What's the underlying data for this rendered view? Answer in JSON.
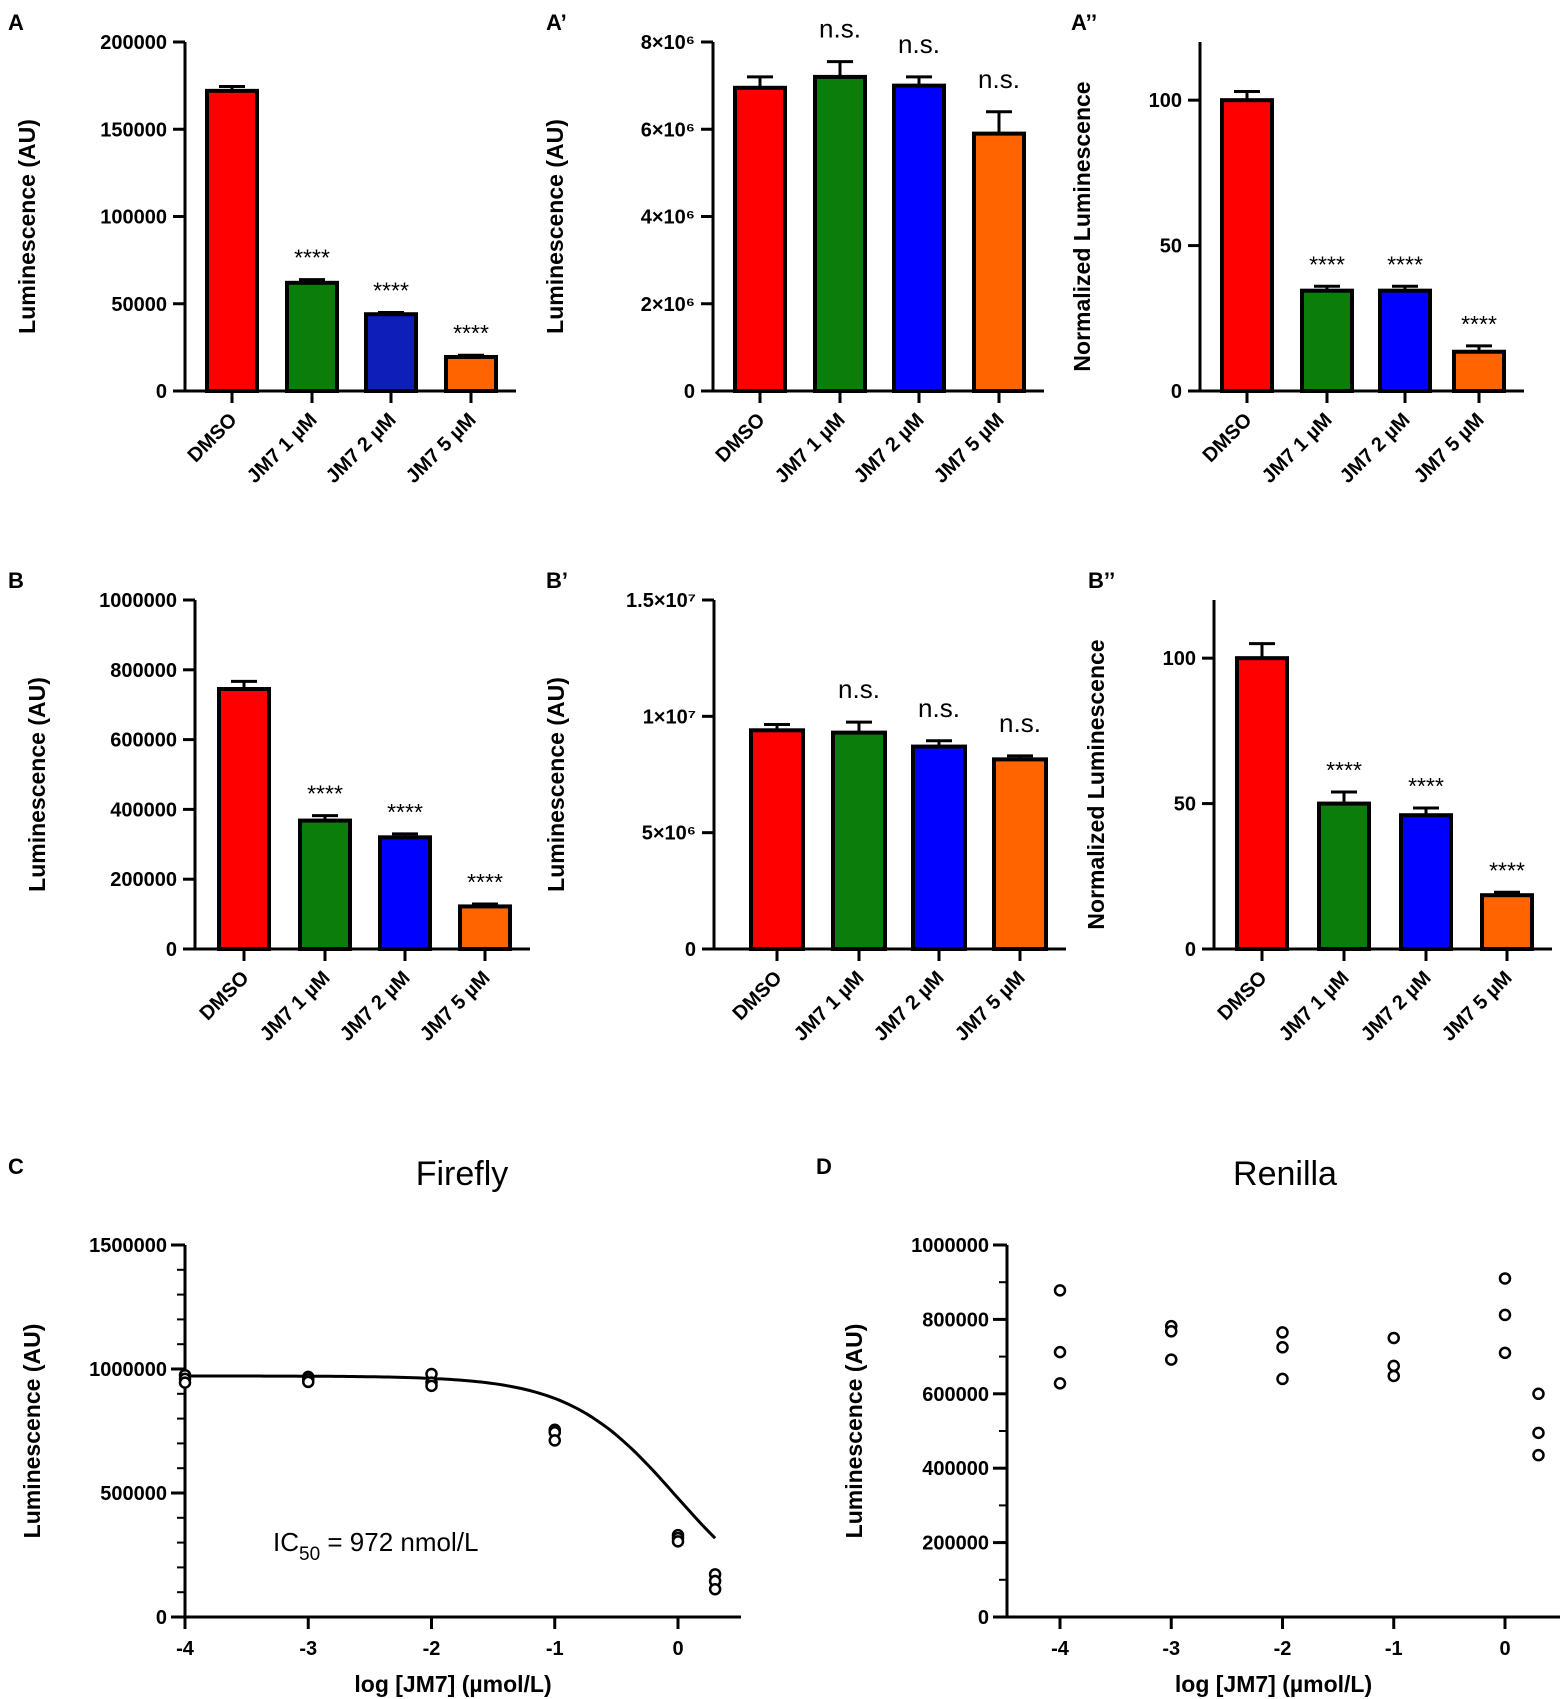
{
  "colors": {
    "DMSO": "#ff0000",
    "JM7 1 µM": "#0a7d0a",
    "JM7 2 µM": "#0000ff",
    "JM7 5 µM": "#ff6400",
    "JM7 2 µM (panel A)": "#0d1fb8"
  },
  "chart_data": [
    {
      "id": "A",
      "panel_label": "A",
      "type": "bar",
      "categories": [
        "DMSO",
        "JM7 1 µM",
        "JM7 2 µM",
        "JM7 5 µM"
      ],
      "values": [
        172000,
        62000,
        44000,
        19500
      ],
      "errors": [
        2500,
        1800,
        1000,
        1000
      ],
      "significance": [
        "",
        "****",
        "****",
        "****"
      ],
      "ylabel": "Luminescence (AU)",
      "ylim": [
        0,
        200000
      ],
      "yticks": [
        0,
        50000,
        100000,
        150000,
        200000
      ],
      "ytick_labels": [
        "0",
        "50000",
        "100000",
        "150000",
        "200000"
      ]
    },
    {
      "id": "A2",
      "panel_label": "A’",
      "type": "bar",
      "categories": [
        "DMSO",
        "JM7 1 µM",
        "JM7 2 µM",
        "JM7 5 µM"
      ],
      "values": [
        6950000,
        7200000,
        7000000,
        5900000
      ],
      "errors": [
        250000,
        350000,
        200000,
        500000
      ],
      "significance": [
        "",
        "n.s.",
        "n.s.",
        "n.s."
      ],
      "ylabel": "Luminescence (AU)",
      "ylim": [
        0,
        8000000
      ],
      "yticks": [
        0,
        2000000,
        4000000,
        6000000,
        8000000
      ],
      "ytick_labels": [
        "0",
        "2×10⁶",
        "4×10⁶",
        "6×10⁶",
        "8×10⁶"
      ]
    },
    {
      "id": "A3",
      "panel_label": "A’’",
      "type": "bar",
      "categories": [
        "DMSO",
        "JM7 1 µM",
        "JM7 2 µM",
        "JM7 5 µM"
      ],
      "values": [
        100,
        34.5,
        34.5,
        13.5
      ],
      "errors": [
        3,
        1.5,
        1.5,
        2
      ],
      "significance": [
        "",
        "****",
        "****",
        "****"
      ],
      "ylabel": "Normalized Luminescence",
      "ylim": [
        0,
        120
      ],
      "yticks": [
        0,
        50,
        100
      ],
      "ytick_labels": [
        "0",
        "50",
        "100"
      ]
    },
    {
      "id": "B",
      "panel_label": "B",
      "type": "bar",
      "categories": [
        "DMSO",
        "JM7 1 µM",
        "JM7 2 µM",
        "JM7 5 µM"
      ],
      "values": [
        745000,
        368000,
        320000,
        122000
      ],
      "errors": [
        22000,
        14000,
        10000,
        7000
      ],
      "significance": [
        "",
        "****",
        "****",
        "****"
      ],
      "ylabel": "Luminescence (AU)",
      "ylim": [
        0,
        1000000
      ],
      "yticks": [
        0,
        200000,
        400000,
        600000,
        800000,
        1000000
      ],
      "ytick_labels": [
        "0",
        "200000",
        "400000",
        "600000",
        "800000",
        "1000000"
      ]
    },
    {
      "id": "B2",
      "panel_label": "B’",
      "type": "bar",
      "categories": [
        "DMSO",
        "JM7 1 µM",
        "JM7 2 µM",
        "JM7 5 µM"
      ],
      "values": [
        9400000,
        9300000,
        8700000,
        8150000
      ],
      "errors": [
        250000,
        450000,
        250000,
        150000
      ],
      "significance": [
        "",
        "n.s.",
        "n.s.",
        "n.s."
      ],
      "ylabel": "Luminescence (AU)",
      "ylim": [
        0,
        15000000
      ],
      "yticks": [
        0,
        5000000,
        10000000,
        15000000
      ],
      "ytick_labels": [
        "0",
        "5×10⁶",
        "1×10⁷",
        "1.5×10⁷"
      ]
    },
    {
      "id": "B3",
      "panel_label": "B’’",
      "type": "bar",
      "categories": [
        "DMSO",
        "JM7 1 µM",
        "JM7 2 µM",
        "JM7 5 µM"
      ],
      "values": [
        100,
        50,
        46,
        18.5
      ],
      "errors": [
        5,
        4,
        2.5,
        1
      ],
      "significance": [
        "",
        "****",
        "****",
        "****"
      ],
      "ylabel": "Normalized Luminescence",
      "ylim": [
        0,
        120
      ],
      "yticks": [
        0,
        50,
        100
      ],
      "ytick_labels": [
        "0",
        "50",
        "100"
      ]
    },
    {
      "id": "C",
      "panel_label": "C",
      "type": "scatter",
      "title": "Firefly",
      "xlabel": "log [JM7] (µmol/L)",
      "ylabel": "Luminescence (AU)",
      "xlim": [
        -4,
        0.5
      ],
      "xticks": [
        -4,
        -3,
        -2,
        -1,
        0
      ],
      "ylim": [
        0,
        1500000
      ],
      "yticks": [
        0,
        500000,
        1000000,
        1500000
      ],
      "ytick_labels": [
        "0",
        "500000",
        "1000000",
        "1500000"
      ],
      "points": [
        {
          "x": -4,
          "y": 975000
        },
        {
          "x": -4,
          "y": 960000
        },
        {
          "x": -4,
          "y": 945000
        },
        {
          "x": -3,
          "y": 968000
        },
        {
          "x": -3,
          "y": 958000
        },
        {
          "x": -3,
          "y": 948000
        },
        {
          "x": -2,
          "y": 980000
        },
        {
          "x": -2,
          "y": 945000
        },
        {
          "x": -2,
          "y": 932000
        },
        {
          "x": -1,
          "y": 755000
        },
        {
          "x": -1,
          "y": 745000
        },
        {
          "x": -1,
          "y": 712000
        },
        {
          "x": 0,
          "y": 330000
        },
        {
          "x": 0,
          "y": 318000
        },
        {
          "x": 0,
          "y": 305000
        },
        {
          "x": 0.301,
          "y": 172000
        },
        {
          "x": 0.301,
          "y": 145000
        },
        {
          "x": 0.301,
          "y": 112000
        }
      ],
      "fit": {
        "model": "sigmoid",
        "top": 972000,
        "bottom": 0,
        "log_ic50": -0.0123,
        "hill_slope": 1
      },
      "annotation": {
        "prefix": "IC",
        "subscript": "50",
        "suffix": " = 972 nmol/L"
      }
    },
    {
      "id": "D",
      "panel_label": "D",
      "type": "scatter",
      "title": "Renilla",
      "xlabel": "log [JM7] (µmol/L)",
      "ylabel": "Luminescence (AU)",
      "xlim": [
        -4.5,
        0.45
      ],
      "xticks": [
        -4,
        -3,
        -2,
        -1,
        0
      ],
      "ylim": [
        0,
        1000000
      ],
      "yticks": [
        0,
        200000,
        400000,
        600000,
        800000,
        1000000
      ],
      "ytick_labels": [
        "0",
        "200000",
        "400000",
        "600000",
        "800000",
        "1000000"
      ],
      "points": [
        {
          "x": -4,
          "y": 878000
        },
        {
          "x": -4,
          "y": 712000
        },
        {
          "x": -4,
          "y": 628000
        },
        {
          "x": -3,
          "y": 782000
        },
        {
          "x": -3,
          "y": 768000
        },
        {
          "x": -3,
          "y": 692000
        },
        {
          "x": -2,
          "y": 765000
        },
        {
          "x": -2,
          "y": 725000
        },
        {
          "x": -2,
          "y": 640000
        },
        {
          "x": -1,
          "y": 750000
        },
        {
          "x": -1,
          "y": 675000
        },
        {
          "x": -1,
          "y": 648000
        },
        {
          "x": 0,
          "y": 910000
        },
        {
          "x": 0,
          "y": 812000
        },
        {
          "x": 0,
          "y": 710000
        },
        {
          "x": 0.301,
          "y": 600000
        },
        {
          "x": 0.301,
          "y": 495000
        },
        {
          "x": 0.301,
          "y": 435000
        }
      ]
    }
  ]
}
